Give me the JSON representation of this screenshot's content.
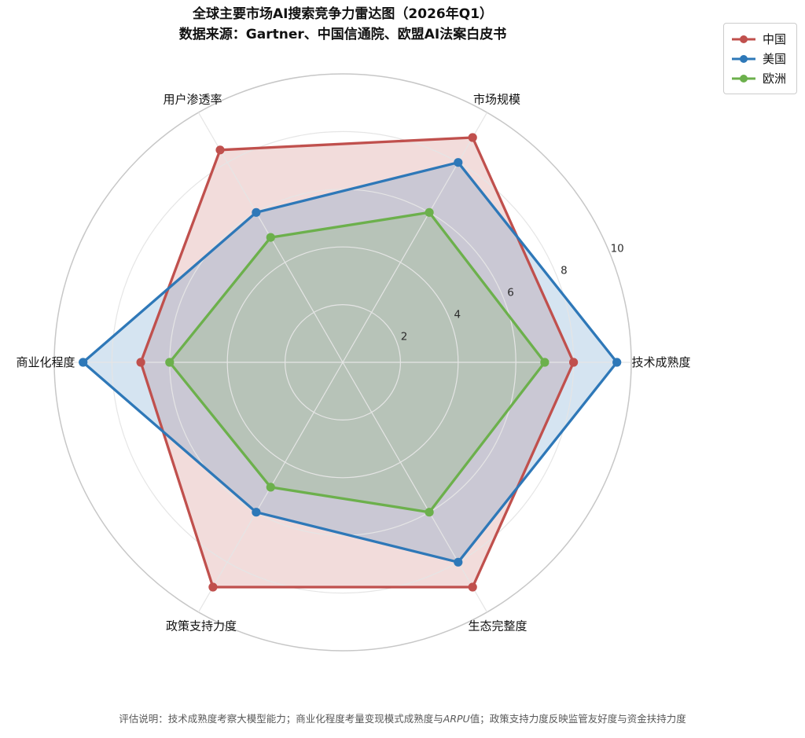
{
  "header": {
    "title": "全球主要市场AI搜索竞争力雷达图（2026年Q1）",
    "subtitle": "数据来源：Gartner、中国信通院、欧盟AI法案白皮书"
  },
  "footer": {
    "note_prefix": "评估说明：技术成熟度考察大模型能力；商业化程度考量变现模式成熟度与",
    "note_italic": "ARPU",
    "note_suffix": "值；政策支持力度反映监管友好度与资金扶持力度"
  },
  "chart_data": {
    "type": "radar",
    "title": "全球主要市场AI搜索竞争力雷达图（2026年Q1）",
    "subtitle": "数据来源：Gartner、中国信通院、欧盟AI法案白皮书",
    "categories": [
      "市场规模",
      "技术成熟度",
      "生态完整度",
      "政策支持力度",
      "商业化程度",
      "用户渗透率"
    ],
    "axis_angles_deg": [
      60,
      0,
      -60,
      -120,
      180,
      120
    ],
    "series": [
      {
        "name": "中国",
        "color": "#c0504d",
        "values": [
          9,
          8,
          9,
          9,
          7,
          8.5
        ]
      },
      {
        "name": "美国",
        "color": "#2e78b8",
        "values": [
          8,
          9.5,
          8,
          6,
          9,
          6
        ]
      },
      {
        "name": "欧洲",
        "color": "#6cb04c",
        "values": [
          6,
          7,
          6,
          5,
          6,
          5
        ]
      }
    ],
    "r_ticks": [
      2,
      4,
      6,
      8,
      10
    ],
    "r_tick_labels": [
      "2",
      "4",
      "6",
      "8",
      "10"
    ],
    "r_max": 10,
    "fill_opacity": 0.2,
    "tick_label_angle_deg": 22.5,
    "legend_position": "top-right",
    "grid": true,
    "grid_color": "#e5e5e5",
    "outer_ring_color": "#c7c7c7",
    "note": "评估说明：技术成熟度考察大模型能力；商业化程度考量变现模式成熟度与ARPU值；政策支持力度反映监管友好度与资金扶持力度"
  }
}
